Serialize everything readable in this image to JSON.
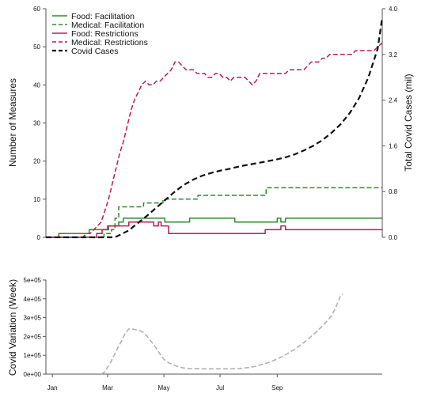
{
  "chart_data": [
    {
      "type": "line",
      "xlabel": "",
      "ylabel": "Number of Measures",
      "y2label": "Total Covid Cases (mil)",
      "ylim": [
        0,
        60
      ],
      "y2lim": [
        0,
        4.0
      ],
      "xlim": [
        0,
        365
      ],
      "yticks": [
        0,
        10,
        20,
        30,
        40,
        50,
        60
      ],
      "y2ticks": [
        "0.0",
        "0.8",
        "1.6",
        "2.4",
        "3.2",
        "4.0"
      ],
      "legend": {
        "position": "top-left"
      },
      "series": [
        {
          "name": "Food: Facilitation",
          "axis": "left",
          "color": "#2e8b2e",
          "dash": "solid",
          "x": [
            0,
            14,
            14,
            47,
            47,
            68,
            68,
            79,
            79,
            84,
            84,
            95,
            95,
            129,
            129,
            156,
            156,
            160,
            160,
            205,
            205,
            210,
            210,
            251,
            251,
            255,
            255,
            260,
            260,
            290,
            290,
            320,
            320,
            365
          ],
          "y": [
            0,
            0,
            1,
            1,
            2,
            2,
            3,
            3,
            4,
            4,
            5,
            5,
            5,
            5,
            4,
            4,
            5,
            5,
            5,
            5,
            4,
            4,
            4,
            4,
            5,
            5,
            4,
            4,
            5,
            5,
            5,
            5,
            5,
            5
          ]
        },
        {
          "name": "Medical: Facilitation",
          "axis": "left",
          "color": "#2e8b2e",
          "dash": "dashed",
          "x": [
            0,
            63,
            63,
            71,
            71,
            75,
            75,
            79,
            79,
            87,
            87,
            106,
            106,
            127,
            127,
            165,
            165,
            239,
            239,
            276,
            276,
            365
          ],
          "y": [
            0,
            0,
            1,
            1,
            2,
            2,
            5,
            5,
            8,
            8,
            8,
            8,
            9,
            9,
            10,
            10,
            11,
            11,
            13,
            13,
            13,
            13
          ]
        },
        {
          "name": "Food: Restrictions",
          "axis": "left",
          "color": "#c2185b",
          "dash": "solid",
          "x": [
            0,
            55,
            55,
            61,
            61,
            67,
            67,
            90,
            90,
            117,
            117,
            122,
            122,
            125,
            125,
            133,
            133,
            238,
            238,
            255,
            255,
            260,
            260,
            285,
            285,
            365
          ],
          "y": [
            0,
            0,
            1,
            1,
            2,
            2,
            3,
            3,
            4,
            4,
            3,
            3,
            4,
            4,
            3,
            3,
            1,
            1,
            2,
            2,
            3,
            3,
            2,
            2,
            2,
            2
          ]
        },
        {
          "name": "Medical: Restrictions",
          "axis": "left",
          "color": "#c2185b",
          "dash": "dashed",
          "x": [
            0,
            40,
            44,
            48,
            52,
            56,
            60,
            64,
            68,
            72,
            76,
            80,
            84,
            88,
            92,
            96,
            100,
            104,
            108,
            112,
            116,
            120,
            124,
            128,
            132,
            136,
            140,
            144,
            148,
            152,
            156,
            160,
            164,
            168,
            172,
            176,
            180,
            184,
            188,
            192,
            196,
            200,
            204,
            208,
            212,
            216,
            220,
            224,
            228,
            232,
            236,
            240,
            244,
            248,
            252,
            256,
            260,
            264,
            268,
            272,
            276,
            280,
            284,
            288,
            292,
            296,
            300,
            304,
            308,
            312,
            316,
            320,
            324,
            328,
            332,
            336,
            340,
            344,
            348,
            352,
            356,
            360,
            365
          ],
          "y": [
            0,
            0,
            1,
            1,
            2,
            3,
            4,
            7,
            10,
            14,
            18,
            22,
            25,
            29,
            33,
            36,
            38,
            40,
            41,
            40,
            40,
            41,
            41,
            42,
            43,
            44,
            46,
            46,
            45,
            44,
            44,
            44,
            43,
            43,
            43,
            42,
            42,
            43,
            43,
            42,
            42,
            41,
            42,
            42,
            42,
            42,
            41,
            40,
            41,
            43,
            43,
            43,
            43,
            43,
            43,
            43,
            43,
            44,
            44,
            44,
            44,
            44,
            45,
            46,
            46,
            46,
            47,
            47,
            48,
            48,
            48,
            48,
            48,
            48,
            48,
            49,
            49,
            49,
            49,
            49,
            49,
            50,
            51
          ]
        },
        {
          "name": "Covid Cases",
          "axis": "right",
          "color": "#111111",
          "dash": "dashed",
          "x": [
            0,
            75,
            80,
            90,
            100,
            110,
            120,
            130,
            140,
            150,
            160,
            170,
            180,
            190,
            200,
            210,
            220,
            230,
            240,
            250,
            260,
            270,
            280,
            290,
            300,
            310,
            320,
            330,
            340,
            350,
            360,
            365
          ],
          "y": [
            0,
            0,
            0.04,
            0.12,
            0.25,
            0.38,
            0.52,
            0.66,
            0.8,
            0.92,
            1.01,
            1.08,
            1.13,
            1.17,
            1.2,
            1.24,
            1.27,
            1.3,
            1.33,
            1.36,
            1.4,
            1.45,
            1.52,
            1.6,
            1.7,
            1.83,
            1.98,
            2.18,
            2.44,
            2.8,
            3.3,
            3.85
          ]
        }
      ],
      "grid": false
    },
    {
      "type": "line",
      "ylabel": "Covid Variation (Week)",
      "xlabel": "",
      "xticks": [
        "Jan",
        "Mar",
        "May",
        "Jul",
        "Sep"
      ],
      "yticks": [
        "0e+00",
        "1e+05",
        "2e+05",
        "3e+05",
        "4e+05",
        "5e+05"
      ],
      "ylim": [
        0,
        500000
      ],
      "xlim": [
        0,
        365
      ],
      "series": [
        {
          "color": "#b0b0b0",
          "dash": "dashed",
          "x": [
            60,
            63,
            66,
            70,
            74,
            78,
            82,
            86,
            90,
            94,
            98,
            102,
            106,
            110,
            114,
            118,
            122,
            126,
            130,
            134,
            138,
            142,
            146,
            150,
            156,
            162,
            170,
            180,
            190,
            200,
            210,
            220,
            226,
            232,
            238,
            244,
            250,
            256,
            262,
            268,
            274,
            280,
            286,
            292,
            298,
            304,
            310,
            315,
            320,
            322
          ],
          "y": [
            0,
            8000,
            30000,
            60000,
            100000,
            140000,
            175000,
            215000,
            240000,
            240000,
            235000,
            230000,
            220000,
            200000,
            175000,
            150000,
            120000,
            90000,
            70000,
            58000,
            50000,
            42000,
            36000,
            32000,
            30000,
            29000,
            28000,
            28000,
            28000,
            28000,
            30000,
            35000,
            40000,
            48000,
            56000,
            66000,
            78000,
            92000,
            108000,
            126000,
            146000,
            168000,
            192000,
            218000,
            246000,
            276000,
            310000,
            360000,
            420000,
            425000
          ]
        }
      ]
    }
  ]
}
